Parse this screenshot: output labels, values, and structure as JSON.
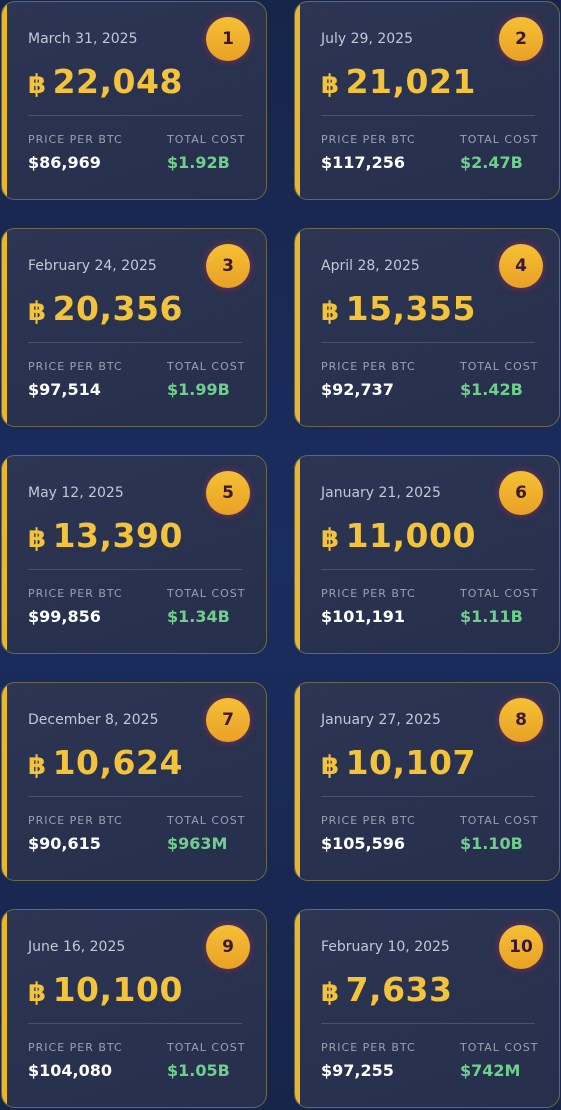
{
  "labels": {
    "price": "PRICE PER BTC",
    "cost": "TOTAL COST",
    "btc_symbol": "฿"
  },
  "colors": {
    "accent": "#e8b72a",
    "amount": "#f2c33b",
    "cost": "#6fcf8c",
    "card_bg": "#2a3350"
  },
  "cards": [
    {
      "rank": "1",
      "date": "March 31, 2025",
      "amount": "22,048",
      "price": "$86,969",
      "cost": "$1.92B"
    },
    {
      "rank": "2",
      "date": "July 29, 2025",
      "amount": "21,021",
      "price": "$117,256",
      "cost": "$2.47B"
    },
    {
      "rank": "3",
      "date": "February 24, 2025",
      "amount": "20,356",
      "price": "$97,514",
      "cost": "$1.99B"
    },
    {
      "rank": "4",
      "date": "April 28, 2025",
      "amount": "15,355",
      "price": "$92,737",
      "cost": "$1.42B"
    },
    {
      "rank": "5",
      "date": "May 12, 2025",
      "amount": "13,390",
      "price": "$99,856",
      "cost": "$1.34B"
    },
    {
      "rank": "6",
      "date": "January 21, 2025",
      "amount": "11,000",
      "price": "$101,191",
      "cost": "$1.11B"
    },
    {
      "rank": "7",
      "date": "December 8, 2025",
      "amount": "10,624",
      "price": "$90,615",
      "cost": "$963M"
    },
    {
      "rank": "8",
      "date": "January 27, 2025",
      "amount": "10,107",
      "price": "$105,596",
      "cost": "$1.10B"
    },
    {
      "rank": "9",
      "date": "June 16, 2025",
      "amount": "10,100",
      "price": "$104,080",
      "cost": "$1.05B"
    },
    {
      "rank": "10",
      "date": "February 10, 2025",
      "amount": "7,633",
      "price": "$97,255",
      "cost": "$742M"
    }
  ]
}
